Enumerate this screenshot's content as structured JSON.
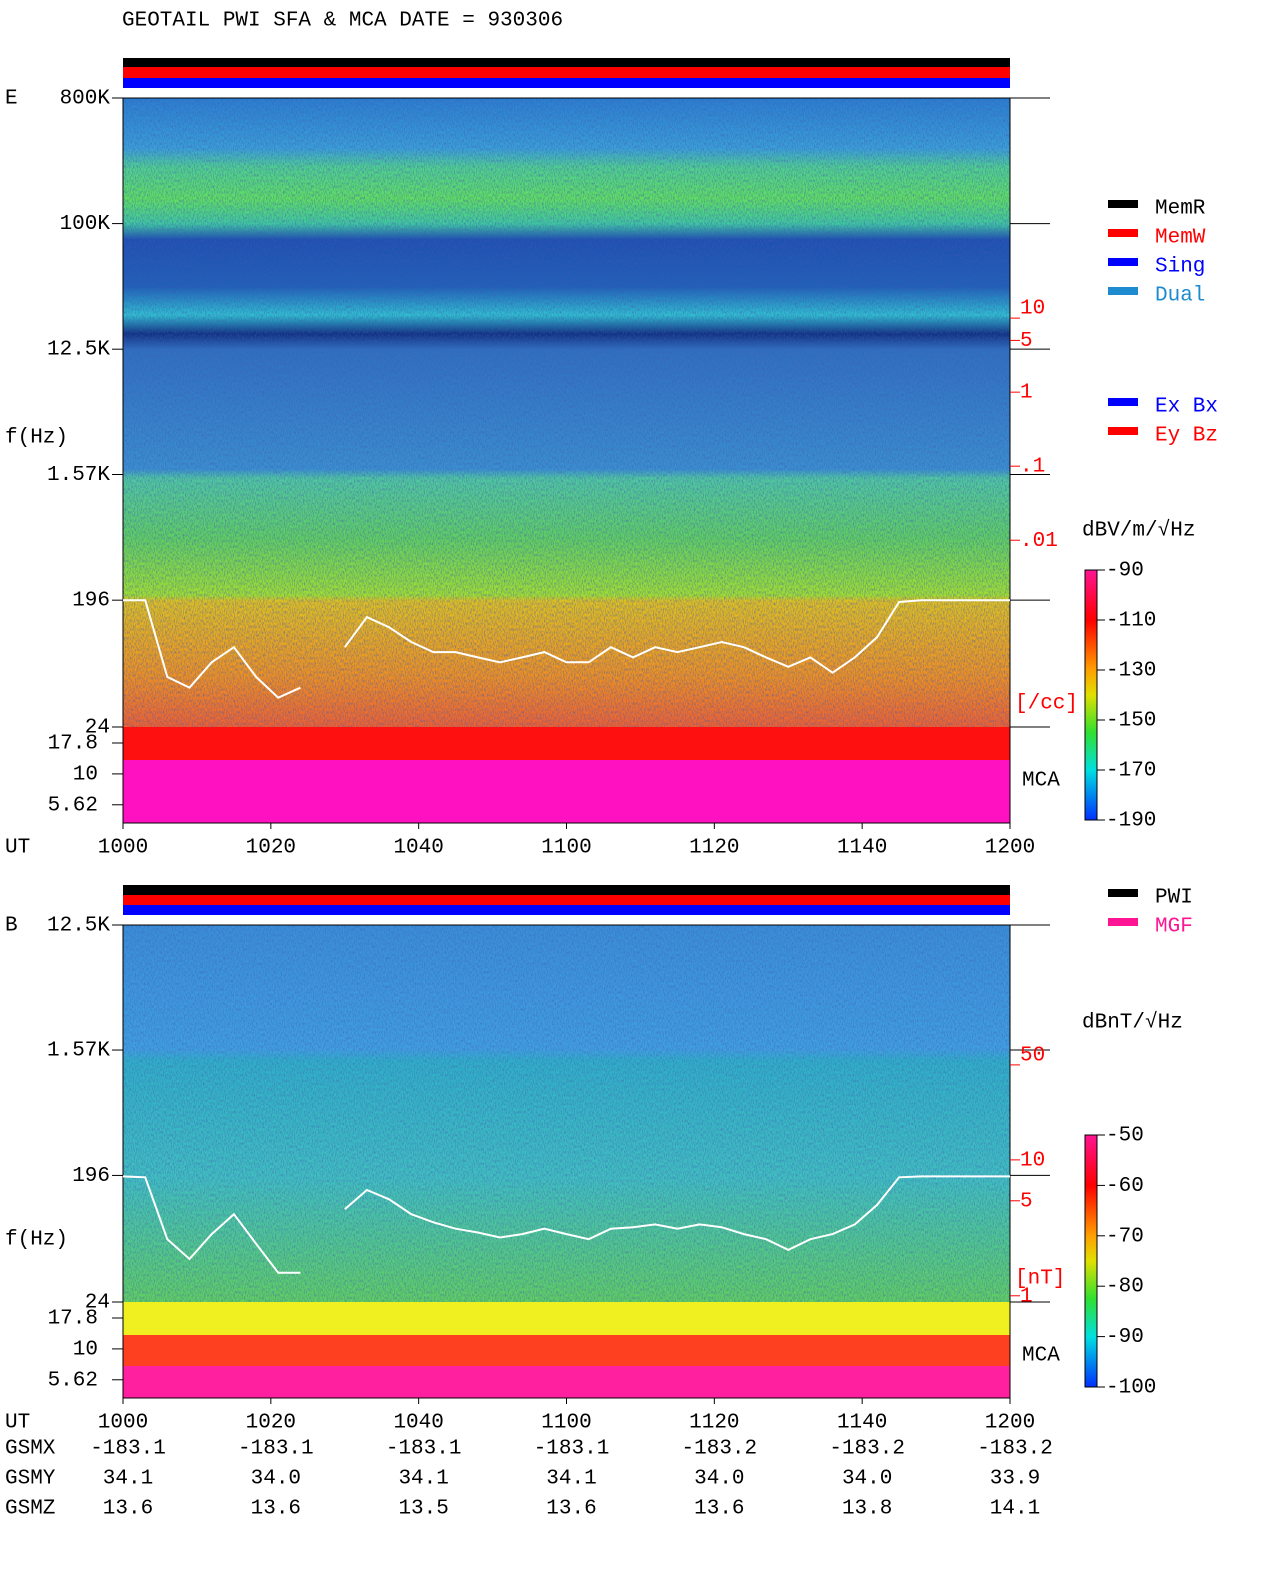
{
  "title": "GEOTAIL  PWI SFA & MCA   DATE = 930306",
  "chart_data": [
    {
      "type": "spectrogram",
      "panel_label": "E",
      "ylabel": "f(Hz)",
      "xlabel": "UT",
      "categories": [
        "1000",
        "1020",
        "1040",
        "1100",
        "1120",
        "1140",
        "1200"
      ],
      "log_scale": true,
      "ylim": [
        24,
        800000
      ],
      "yticks": [
        {
          "value": 800000,
          "label": "800K"
        },
        {
          "value": 100000,
          "label": "100K"
        },
        {
          "value": 12500,
          "label": "12.5K"
        },
        {
          "value": 1570,
          "label": "1.57K"
        },
        196,
        24
      ],
      "mca_label": "MCA",
      "mca_ylim": [
        4,
        24
      ],
      "mca_yticks": [
        17.8,
        10,
        5.62
      ],
      "y2label": "[/cc]",
      "y2color": "#ff0000",
      "y2lim": [
        3e-05,
        9400
      ],
      "y2ticks": [
        10,
        5,
        1,
        {
          "value": 0.1,
          "label": ".1"
        },
        {
          "value": 0.01,
          "label": ".01"
        }
      ],
      "colorbar": {
        "title": "dBV/m/√Hz",
        "lim": [
          -190,
          -90
        ],
        "ticks": [
          -90,
          -110,
          -130,
          -150,
          -170,
          -190
        ]
      },
      "trace": {
        "color": "#ffffff",
        "values": [
          196,
          196,
          55,
          46,
          70,
          90,
          55,
          39,
          46,
          null,
          90,
          148,
          125,
          98,
          83,
          83,
          76,
          70,
          76,
          83,
          70,
          70,
          90,
          76,
          90,
          83,
          90,
          98,
          90,
          76,
          65,
          76,
          59,
          76,
          106,
          190,
          196,
          196,
          196,
          196,
          196
        ]
      },
      "legends": [
        [
          {
            "name": "MemR",
            "color": "#000000"
          },
          {
            "name": "MemW",
            "color": "#ff0000"
          },
          {
            "name": "Sing",
            "color": "#0000ff"
          },
          {
            "name": "Dual",
            "color": "#1e8ad0"
          }
        ],
        [
          {
            "name": "Ex Bx",
            "color": "#0000ff"
          },
          {
            "name": "Ey Bz",
            "color": "#ff0000"
          }
        ]
      ]
    },
    {
      "type": "spectrogram",
      "panel_label": "B",
      "ylabel": "f(Hz)",
      "xlabel": "UT",
      "categories": [
        "1000",
        "1020",
        "1040",
        "1100",
        "1120",
        "1140",
        "1200"
      ],
      "log_scale": true,
      "ylim": [
        24,
        12500
      ],
      "yticks": [
        {
          "value": 12500,
          "label": "12.5K"
        },
        {
          "value": 1570,
          "label": "1.57K"
        },
        196,
        24
      ],
      "mca_label": "MCA",
      "mca_ylim": [
        4,
        24
      ],
      "mca_yticks": [
        17.8,
        10,
        5.62
      ],
      "y2label": "[nT]",
      "y2color": "#ff0000",
      "y2lim": [
        0.9,
        535
      ],
      "y2ticks": [
        50,
        10,
        5,
        1
      ],
      "colorbar": {
        "title": "dBnT/√Hz",
        "lim": [
          -100,
          -50
        ],
        "ticks": [
          -50,
          -60,
          -70,
          -80,
          -90,
          -100
        ]
      },
      "trace": {
        "color": "#ffffff",
        "values": [
          193,
          190,
          68,
          49,
          74,
          103,
          63,
          39,
          39,
          null,
          112,
          154,
          132,
          103,
          90,
          81,
          76,
          70,
          74,
          81,
          74,
          68,
          81,
          83,
          87,
          81,
          87,
          83,
          74,
          68,
          57,
          68,
          74,
          87,
          120,
          190,
          193,
          193,
          193,
          193,
          193
        ]
      },
      "legends": [
        [
          {
            "name": "PWI",
            "color": "#000000"
          },
          {
            "name": "MGF",
            "color": "#ff1493"
          }
        ]
      ]
    }
  ],
  "orbit": {
    "rows": [
      {
        "label": "GSMX",
        "values": [
          "-183.1",
          "-183.1",
          "-183.1",
          "-183.1",
          "-183.2",
          "-183.2",
          "-183.2"
        ]
      },
      {
        "label": "GSMY",
        "values": [
          "34.1",
          "34.0",
          "34.1",
          "34.1",
          "34.0",
          "34.0",
          "33.9"
        ]
      },
      {
        "label": "GSMZ",
        "values": [
          "13.6",
          "13.6",
          "13.5",
          "13.6",
          "13.6",
          "13.8",
          "14.1"
        ]
      }
    ]
  }
}
